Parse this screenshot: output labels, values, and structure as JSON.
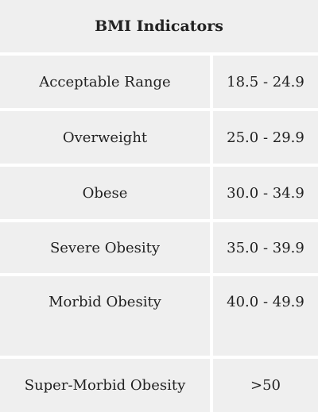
{
  "table": {
    "title": "BMI Indicators",
    "rows": [
      {
        "label": "Acceptable Range",
        "value": "18.5 - 24.9"
      },
      {
        "label": "Overweight",
        "value": "25.0 - 29.9"
      },
      {
        "label": "Obese",
        "value": "30.0 - 34.9"
      },
      {
        "label": "Severe Obesity",
        "value": "35.0 - 39.9"
      },
      {
        "label": "Morbid Obesity",
        "value": "40.0 - 49.9"
      },
      {
        "label": "Super-Morbid Obesity",
        "value": ">50"
      }
    ]
  },
  "colors": {
    "cell_background": "#efefef",
    "grid_lines": "#ffffff",
    "text": "#222222"
  }
}
